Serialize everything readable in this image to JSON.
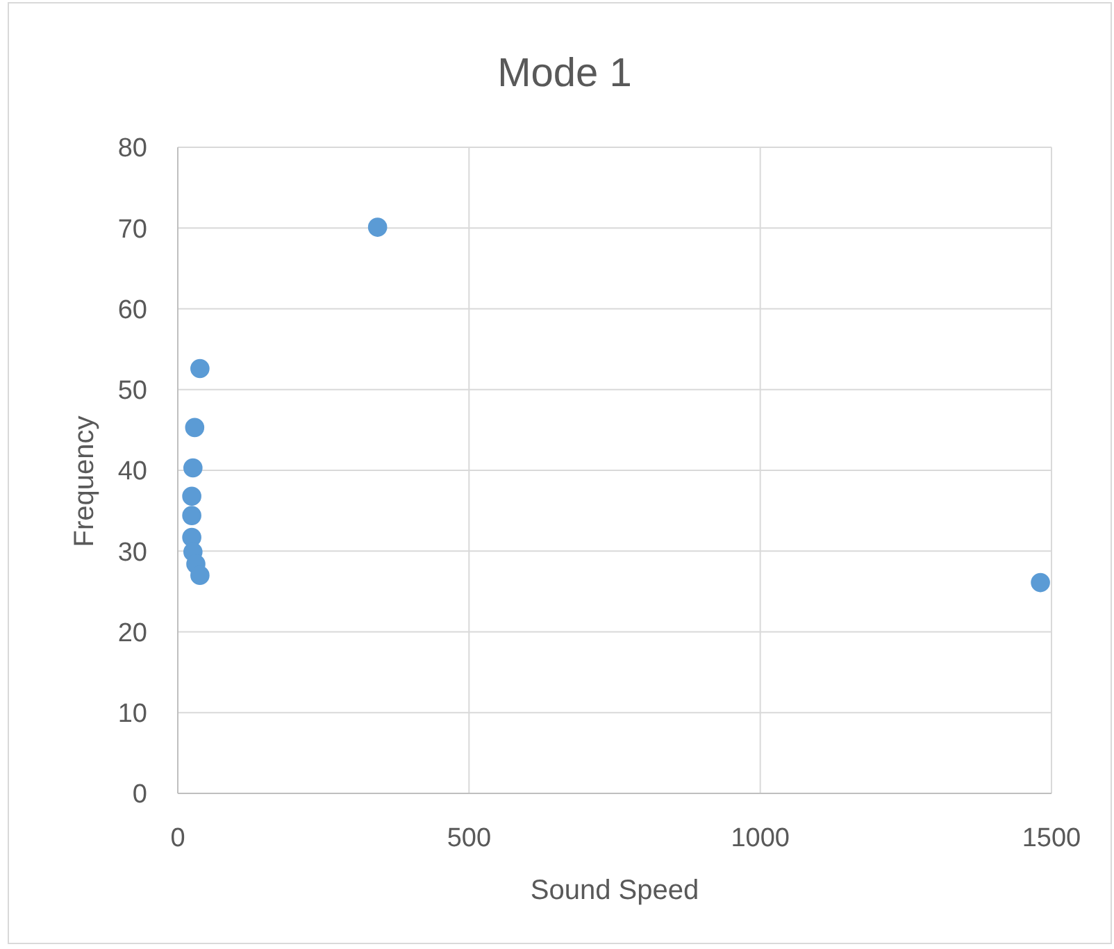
{
  "chart_data": {
    "type": "scatter",
    "title": "Mode 1",
    "xlabel": "Sound Speed",
    "ylabel": "Frequency",
    "x": [
      38,
      29,
      26,
      24,
      24,
      24,
      26,
      31,
      38,
      343,
      1481
    ],
    "values": [
      52.6,
      45.3,
      40.3,
      36.8,
      34.4,
      31.7,
      29.9,
      28.4,
      27.0,
      70.1,
      26.1
    ],
    "color": "#5b9bd5",
    "marker": "circle",
    "xlim": [
      0,
      1500
    ],
    "xticks": [
      0,
      500,
      1000,
      1500
    ],
    "ylim": [
      0,
      80
    ],
    "yticks": [
      0,
      10,
      20,
      30,
      40,
      50,
      60,
      70,
      80
    ],
    "grid": true
  }
}
